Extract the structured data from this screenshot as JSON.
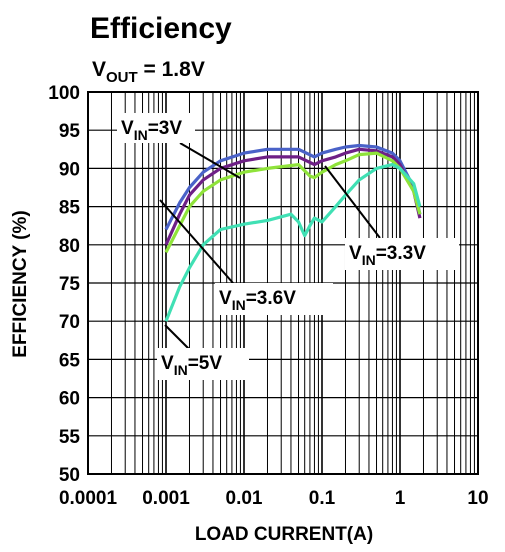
{
  "chart_data": {
    "type": "line",
    "title": "Efficiency",
    "subtitle": {
      "prefix": "V",
      "subscript": "OUT",
      "suffix": " = 1.8V"
    },
    "xlabel": "LOAD CURRENT(A)",
    "ylabel": "EFFICIENCY (%)",
    "xscale": "log",
    "xlim": [
      0.0001,
      10
    ],
    "ylim": [
      50,
      100
    ],
    "xticks": [
      "0.0001",
      "0.001",
      "0.01",
      "0.1",
      "1",
      "10"
    ],
    "yticks": [
      "50",
      "55",
      "60",
      "65",
      "70",
      "75",
      "80",
      "85",
      "90",
      "95",
      "100"
    ],
    "grid": true,
    "series": [
      {
        "label": {
          "prefix": "V",
          "subscript": "IN",
          "suffix": "=3V"
        },
        "color": "#4a62c8",
        "x": [
          0.001,
          0.0015,
          0.002,
          0.003,
          0.005,
          0.01,
          0.02,
          0.05,
          0.08,
          0.1,
          0.15,
          0.2,
          0.3,
          0.5,
          0.8,
          1.0,
          1.5,
          1.8
        ],
        "y": [
          82.0,
          85.5,
          87.5,
          89.5,
          91.0,
          92.0,
          92.5,
          92.5,
          91.5,
          92.0,
          92.5,
          92.8,
          93.0,
          92.8,
          92.0,
          91.0,
          87.5,
          84.0
        ]
      },
      {
        "label": {
          "prefix": "V",
          "subscript": "IN",
          "suffix": "=3.3V"
        },
        "color": "#6e1f86",
        "x": [
          0.001,
          0.0015,
          0.002,
          0.003,
          0.005,
          0.01,
          0.02,
          0.05,
          0.08,
          0.1,
          0.15,
          0.2,
          0.3,
          0.5,
          0.8,
          1.0,
          1.5,
          1.8
        ],
        "y": [
          80.0,
          84.0,
          86.5,
          88.5,
          90.0,
          91.0,
          91.5,
          91.5,
          90.5,
          91.0,
          91.5,
          92.0,
          92.5,
          92.3,
          91.5,
          90.5,
          87.0,
          83.5
        ]
      },
      {
        "label": {
          "prefix": "V",
          "subscript": "IN",
          "suffix": "=3.6V"
        },
        "color": "#8fe33a",
        "x": [
          0.001,
          0.0015,
          0.002,
          0.003,
          0.005,
          0.01,
          0.02,
          0.05,
          0.07,
          0.08,
          0.1,
          0.15,
          0.2,
          0.3,
          0.5,
          0.8,
          1.0,
          1.5,
          1.8
        ],
        "y": [
          79.0,
          82.5,
          85.0,
          87.0,
          88.5,
          89.5,
          90.0,
          90.5,
          89.0,
          88.8,
          89.5,
          90.5,
          91.0,
          91.8,
          92.0,
          91.0,
          90.0,
          87.0,
          84.0
        ]
      },
      {
        "label": {
          "prefix": "V",
          "subscript": "IN",
          "suffix": "=5V"
        },
        "color": "#40e0b4",
        "x": [
          0.001,
          0.0015,
          0.002,
          0.003,
          0.005,
          0.01,
          0.02,
          0.04,
          0.05,
          0.06,
          0.07,
          0.08,
          0.1,
          0.15,
          0.2,
          0.3,
          0.5,
          0.8,
          1.0,
          1.5,
          1.8
        ],
        "y": [
          70.0,
          74.5,
          77.0,
          80.0,
          82.0,
          82.7,
          83.2,
          84.0,
          83.0,
          81.2,
          82.5,
          83.5,
          83.0,
          85.0,
          86.5,
          88.5,
          90.0,
          90.5,
          90.0,
          88.0,
          85.0
        ]
      }
    ],
    "annotations": [
      {
        "series": 0,
        "text": {
          "prefix": "V",
          "subscript": "IN",
          "suffix": "=3V"
        }
      },
      {
        "series": 1,
        "text": {
          "prefix": "V",
          "subscript": "IN",
          "suffix": "=3.3V"
        }
      },
      {
        "series": 2,
        "text": {
          "prefix": "V",
          "subscript": "IN",
          "suffix": "=3.6V"
        }
      },
      {
        "series": 3,
        "text": {
          "prefix": "V",
          "subscript": "IN",
          "suffix": "=5V"
        }
      }
    ]
  }
}
